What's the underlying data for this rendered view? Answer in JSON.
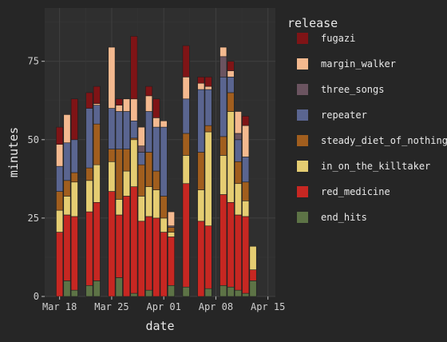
{
  "chart_data": {
    "type": "bar",
    "stacked": true,
    "xlabel": "date",
    "ylabel": "minutes",
    "xlim": [
      "2018-03-16",
      "2018-04-16"
    ],
    "ylim": [
      0,
      92
    ],
    "x_ticks": [
      "2018-03-18",
      "2018-03-25",
      "2018-04-01",
      "2018-04-08",
      "2018-04-15"
    ],
    "x_tick_labels": [
      "Mar 18",
      "Mar 25",
      "Apr 01",
      "Apr 08",
      "Apr 15"
    ],
    "y_ticks": [
      0,
      25,
      50,
      75
    ],
    "grid": true,
    "legend_title": "release",
    "legend_position": "right",
    "series_order_bottom_to_top": [
      "end_hits",
      "red_medicine",
      "in_on_the_killtaker",
      "steady_diet_of_nothing",
      "repeater",
      "three_songs",
      "margin_walker",
      "fugazi"
    ],
    "legend_order": [
      "fugazi",
      "margin_walker",
      "three_songs",
      "repeater",
      "steady_diet_of_nothing",
      "in_on_the_killtaker",
      "red_medicine",
      "end_hits"
    ],
    "colors": {
      "fugazi": "#7f1416",
      "margin_walker": "#f4b98f",
      "three_songs": "#6b5460",
      "repeater": "#5a6590",
      "steady_diet_of_nothing": "#a15e1e",
      "in_on_the_killtaker": "#e5cd72",
      "red_medicine": "#c72722",
      "end_hits": "#5d7346"
    },
    "bars": [
      {
        "date": "2018-03-18",
        "segments": [
          [
            "red_medicine",
            20.5
          ],
          [
            "in_on_the_killtaker",
            7
          ],
          [
            "steady_diet_of_nothing",
            6
          ],
          [
            "repeater",
            8
          ],
          [
            "margin_walker",
            7
          ],
          [
            "fugazi",
            5.5
          ]
        ]
      },
      {
        "date": "2018-03-19",
        "segments": [
          [
            "end_hits",
            5
          ],
          [
            "red_medicine",
            21
          ],
          [
            "in_on_the_killtaker",
            6
          ],
          [
            "steady_diet_of_nothing",
            5
          ],
          [
            "repeater",
            12
          ],
          [
            "margin_walker",
            9
          ]
        ]
      },
      {
        "date": "2018-03-20",
        "segments": [
          [
            "end_hits",
            2
          ],
          [
            "red_medicine",
            23.5
          ],
          [
            "in_on_the_killtaker",
            11
          ],
          [
            "steady_diet_of_nothing",
            3
          ],
          [
            "repeater",
            10.5
          ],
          [
            "fugazi",
            13
          ]
        ]
      },
      {
        "date": "2018-03-22",
        "segments": [
          [
            "end_hits",
            3.5
          ],
          [
            "red_medicine",
            23.5
          ],
          [
            "in_on_the_killtaker",
            10
          ],
          [
            "steady_diet_of_nothing",
            4
          ],
          [
            "repeater",
            19
          ],
          [
            "fugazi",
            5
          ]
        ]
      },
      {
        "date": "2018-03-23",
        "segments": [
          [
            "end_hits",
            5
          ],
          [
            "red_medicine",
            25
          ],
          [
            "in_on_the_killtaker",
            12
          ],
          [
            "steady_diet_of_nothing",
            13
          ],
          [
            "repeater",
            6
          ],
          [
            "margin_walker",
            0.5
          ],
          [
            "fugazi",
            5.5
          ]
        ]
      },
      {
        "date": "2018-03-25",
        "segments": [
          [
            "red_medicine",
            33.5
          ],
          [
            "in_on_the_killtaker",
            9.5
          ],
          [
            "steady_diet_of_nothing",
            4
          ],
          [
            "repeater",
            13
          ],
          [
            "margin_walker",
            19.5
          ]
        ]
      },
      {
        "date": "2018-03-26",
        "segments": [
          [
            "end_hits",
            6
          ],
          [
            "red_medicine",
            20
          ],
          [
            "in_on_the_killtaker",
            5
          ],
          [
            "steady_diet_of_nothing",
            16
          ],
          [
            "repeater",
            12
          ],
          [
            "margin_walker",
            2
          ],
          [
            "fugazi",
            2
          ]
        ]
      },
      {
        "date": "2018-03-27",
        "segments": [
          [
            "red_medicine",
            32
          ],
          [
            "in_on_the_killtaker",
            8
          ],
          [
            "steady_diet_of_nothing",
            7
          ],
          [
            "repeater",
            12
          ],
          [
            "margin_walker",
            4
          ]
        ]
      },
      {
        "date": "2018-03-28",
        "segments": [
          [
            "end_hits",
            1
          ],
          [
            "red_medicine",
            34
          ],
          [
            "in_on_the_killtaker",
            15
          ],
          [
            "steady_diet_of_nothing",
            0.5
          ],
          [
            "repeater",
            5.5
          ],
          [
            "margin_walker",
            7
          ],
          [
            "fugazi",
            20
          ]
        ]
      },
      {
        "date": "2018-03-29",
        "segments": [
          [
            "red_medicine",
            24
          ],
          [
            "in_on_the_killtaker",
            8
          ],
          [
            "steady_diet_of_nothing",
            10
          ],
          [
            "repeater",
            4
          ],
          [
            "three_songs",
            2
          ],
          [
            "margin_walker",
            6
          ]
        ]
      },
      {
        "date": "2018-03-30",
        "segments": [
          [
            "end_hits",
            2
          ],
          [
            "red_medicine",
            23.5
          ],
          [
            "in_on_the_killtaker",
            9.5
          ],
          [
            "steady_diet_of_nothing",
            11
          ],
          [
            "repeater",
            13
          ],
          [
            "margin_walker",
            5
          ],
          [
            "fugazi",
            3
          ]
        ]
      },
      {
        "date": "2018-03-31",
        "segments": [
          [
            "red_medicine",
            25
          ],
          [
            "in_on_the_killtaker",
            9
          ],
          [
            "steady_diet_of_nothing",
            6
          ],
          [
            "repeater",
            14
          ],
          [
            "margin_walker",
            3
          ],
          [
            "fugazi",
            6
          ]
        ]
      },
      {
        "date": "2018-04-01",
        "segments": [
          [
            "red_medicine",
            20.5
          ],
          [
            "in_on_the_killtaker",
            4.5
          ],
          [
            "steady_diet_of_nothing",
            7
          ],
          [
            "repeater",
            22
          ],
          [
            "margin_walker",
            2
          ]
        ]
      },
      {
        "date": "2018-04-02",
        "segments": [
          [
            "end_hits",
            3.5
          ],
          [
            "red_medicine",
            15.5
          ],
          [
            "in_on_the_killtaker",
            1.5
          ],
          [
            "steady_diet_of_nothing",
            1.5
          ],
          [
            "three_songs",
            0.5
          ],
          [
            "margin_walker",
            4.5
          ]
        ]
      },
      {
        "date": "2018-04-04",
        "segments": [
          [
            "end_hits",
            3
          ],
          [
            "red_medicine",
            33
          ],
          [
            "in_on_the_killtaker",
            9
          ],
          [
            "steady_diet_of_nothing",
            7
          ],
          [
            "repeater",
            11
          ],
          [
            "margin_walker",
            7
          ],
          [
            "fugazi",
            10
          ]
        ]
      },
      {
        "date": "2018-04-06",
        "segments": [
          [
            "red_medicine",
            24
          ],
          [
            "in_on_the_killtaker",
            10
          ],
          [
            "steady_diet_of_nothing",
            12
          ],
          [
            "repeater",
            20
          ],
          [
            "margin_walker",
            2
          ],
          [
            "fugazi",
            2
          ]
        ]
      },
      {
        "date": "2018-04-07",
        "segments": [
          [
            "end_hits",
            2.5
          ],
          [
            "red_medicine",
            20
          ],
          [
            "in_on_the_killtaker",
            30
          ],
          [
            "steady_diet_of_nothing",
            2
          ],
          [
            "repeater",
            11.5
          ],
          [
            "margin_walker",
            1
          ],
          [
            "fugazi",
            3
          ]
        ]
      },
      {
        "date": "2018-04-09",
        "segments": [
          [
            "end_hits",
            3.5
          ],
          [
            "red_medicine",
            29
          ],
          [
            "in_on_the_killtaker",
            12.5
          ],
          [
            "steady_diet_of_nothing",
            6
          ],
          [
            "repeater",
            19
          ],
          [
            "three_songs",
            6.5
          ],
          [
            "margin_walker",
            3
          ]
        ]
      },
      {
        "date": "2018-04-10",
        "segments": [
          [
            "end_hits",
            3
          ],
          [
            "red_medicine",
            27
          ],
          [
            "in_on_the_killtaker",
            29
          ],
          [
            "steady_diet_of_nothing",
            6
          ],
          [
            "repeater",
            5
          ],
          [
            "margin_walker",
            2
          ],
          [
            "fugazi",
            3
          ]
        ]
      },
      {
        "date": "2018-04-11",
        "segments": [
          [
            "end_hits",
            2
          ],
          [
            "red_medicine",
            24
          ],
          [
            "in_on_the_killtaker",
            10
          ],
          [
            "steady_diet_of_nothing",
            7
          ],
          [
            "repeater",
            7
          ],
          [
            "three_songs",
            2
          ],
          [
            "margin_walker",
            7
          ]
        ]
      },
      {
        "date": "2018-04-12",
        "segments": [
          [
            "end_hits",
            1
          ],
          [
            "red_medicine",
            24.5
          ],
          [
            "in_on_the_killtaker",
            5
          ],
          [
            "steady_diet_of_nothing",
            6
          ],
          [
            "repeater",
            8
          ],
          [
            "margin_walker",
            10
          ],
          [
            "fugazi",
            3
          ]
        ]
      },
      {
        "date": "2018-04-13",
        "segments": [
          [
            "end_hits",
            5
          ],
          [
            "red_medicine",
            3.5
          ],
          [
            "in_on_the_killtaker",
            7.5
          ]
        ]
      }
    ]
  }
}
